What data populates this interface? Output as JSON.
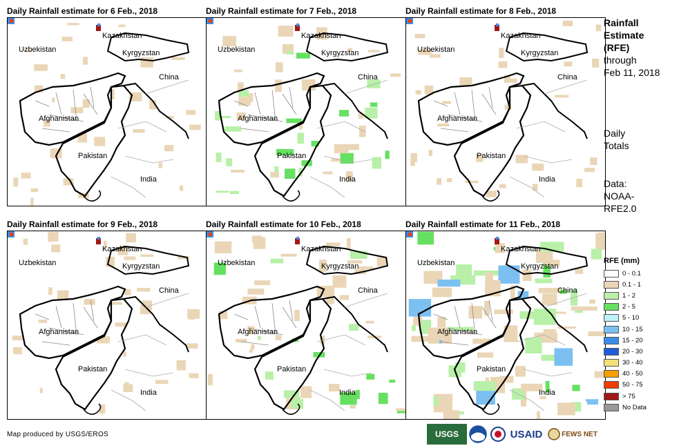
{
  "panels": [
    {
      "title": "Daily Rainfall estimate for 6 Feb., 2018",
      "intensity": 1
    },
    {
      "title": "Daily Rainfall estimate for 7 Feb., 2018",
      "intensity": 2
    },
    {
      "title": "Daily Rainfall estimate for 8 Feb., 2018",
      "intensity": 1
    },
    {
      "title": "Daily Rainfall estimate for 9 Feb., 2018",
      "intensity": 1
    },
    {
      "title": "Daily Rainfall estimate for 10 Feb., 2018",
      "intensity": 2
    },
    {
      "title": "Daily Rainfall estimate for 11 Feb., 2018",
      "intensity": 4
    }
  ],
  "map_labels": {
    "kazakhstan": "Kazakhstan",
    "uzbekistan": "Uzbekistan",
    "kyrgyzstan": "Kyrgyzstan",
    "china": "China",
    "afghanistan": "Afghanistan",
    "pakistan": "Pakistan",
    "india": "India"
  },
  "side": {
    "title_lines": [
      "Rainfall",
      "Estimate",
      "(RFE)"
    ],
    "through": "through",
    "date": "Feb 11, 2018",
    "totals_lines": [
      "Daily",
      "Totals"
    ],
    "data_lines": [
      "Data:",
      "NOAA-",
      "RFE2.0"
    ]
  },
  "legend": {
    "title": "RFE (mm)",
    "items": [
      {
        "label": "0 - 0.1",
        "color": "#ffffff"
      },
      {
        "label": "0.1 - 1",
        "color": "#ead6b6"
      },
      {
        "label": "1 - 2",
        "color": "#b8f0a8"
      },
      {
        "label": "2 - 5",
        "color": "#66e060"
      },
      {
        "label": "5 - 10",
        "color": "#bff2f7"
      },
      {
        "label": "10 - 15",
        "color": "#7cc0f2"
      },
      {
        "label": "15 - 20",
        "color": "#3c8cea"
      },
      {
        "label": "20 - 30",
        "color": "#1f5ed8"
      },
      {
        "label": "30 - 40",
        "color": "#f5e07a"
      },
      {
        "label": "40 - 50",
        "color": "#f5a000"
      },
      {
        "label": "50 - 75",
        "color": "#f03c00"
      },
      {
        "label": "> 75",
        "color": "#a01818"
      },
      {
        "label": "No Data",
        "color": "#999999"
      }
    ]
  },
  "credit": "Map produced by USGS/EROS",
  "logos": {
    "usgs": "USGS",
    "usaid": "USAID",
    "fews": "FEWS NET"
  }
}
